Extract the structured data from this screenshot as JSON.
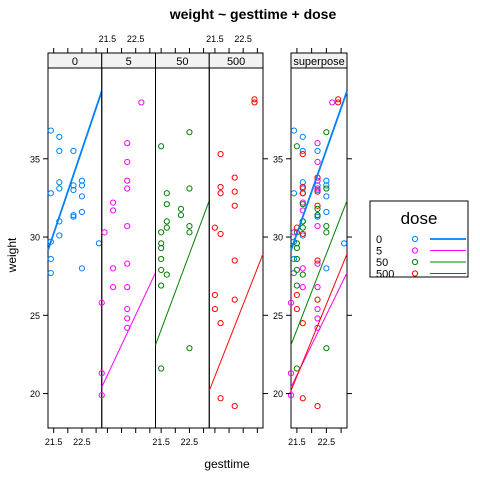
{
  "chart_data": {
    "type": "scatter",
    "title": "weight ~ gesttime + dose",
    "xlabel": "gesttime",
    "ylabel": "weight",
    "xlim": [
      21.3,
      23.2
    ],
    "ylim": [
      17.8,
      40.8
    ],
    "x_ticks": [
      "21.5",
      "22.5"
    ],
    "y_ticks": [
      "20",
      "25",
      "30",
      "35"
    ],
    "panels": [
      "0",
      "5",
      "50",
      "500"
    ],
    "superpose_label": "superpose",
    "legend": {
      "title": "dose",
      "placement": "right"
    },
    "series": [
      {
        "name": "0",
        "color": "#0080ff",
        "line_width": "thick",
        "fit": {
          "intercept": -84.8,
          "slope": 5.35
        },
        "points": [
          [
            21.4,
            36.8
          ],
          [
            21.4,
            32.8
          ],
          [
            21.4,
            29.7
          ],
          [
            21.4,
            28.6
          ],
          [
            21.4,
            27.7
          ],
          [
            21.7,
            36.4
          ],
          [
            21.7,
            35.5
          ],
          [
            21.7,
            33.5
          ],
          [
            21.7,
            33.1
          ],
          [
            21.7,
            31.0
          ],
          [
            21.7,
            30.1
          ],
          [
            22.2,
            35.5
          ],
          [
            22.2,
            33.3
          ],
          [
            22.2,
            33.0
          ],
          [
            22.2,
            31.4
          ],
          [
            22.2,
            31.3
          ],
          [
            22.5,
            33.6
          ],
          [
            22.5,
            33.3
          ],
          [
            22.5,
            32.6
          ],
          [
            22.5,
            31.6
          ],
          [
            22.5,
            28.0
          ],
          [
            23.1,
            29.6
          ]
        ]
      },
      {
        "name": "5",
        "color": "#ff00ff",
        "line_width": "thin",
        "fit": {
          "intercept": -61.6,
          "slope": 3.85
        },
        "points": [
          [
            21.3,
            25.8
          ],
          [
            21.3,
            21.3
          ],
          [
            21.3,
            19.9
          ],
          [
            21.4,
            30.3
          ],
          [
            21.7,
            32.2
          ],
          [
            21.7,
            31.7
          ],
          [
            21.7,
            28.0
          ],
          [
            21.7,
            26.8
          ],
          [
            22.2,
            36.0
          ],
          [
            22.2,
            34.8
          ],
          [
            22.2,
            33.6
          ],
          [
            22.2,
            33.1
          ],
          [
            22.2,
            30.7
          ],
          [
            22.2,
            28.3
          ],
          [
            22.2,
            26.8
          ],
          [
            22.2,
            25.4
          ],
          [
            22.2,
            24.8
          ],
          [
            22.2,
            24.2
          ],
          [
            22.7,
            38.6
          ]
        ]
      },
      {
        "name": "50",
        "color": "#008000",
        "line_width": "thin",
        "fit": {
          "intercept": -80.2,
          "slope": 4.85
        },
        "points": [
          [
            21.5,
            35.8
          ],
          [
            21.5,
            30.3
          ],
          [
            21.5,
            29.6
          ],
          [
            21.5,
            29.3
          ],
          [
            21.5,
            28.6
          ],
          [
            21.5,
            27.9
          ],
          [
            21.5,
            26.9
          ],
          [
            21.5,
            21.6
          ],
          [
            21.7,
            32.8
          ],
          [
            21.7,
            32.1
          ],
          [
            21.7,
            31.0
          ],
          [
            21.7,
            30.6
          ],
          [
            21.7,
            27.6
          ],
          [
            22.5,
            36.7
          ],
          [
            22.5,
            33.1
          ],
          [
            22.5,
            30.7
          ],
          [
            22.5,
            30.3
          ],
          [
            22.5,
            22.9
          ],
          [
            22.2,
            31.8
          ],
          [
            22.2,
            31.4
          ]
        ]
      },
      {
        "name": "500",
        "color": "#ff0000",
        "line_width": "thin",
        "fit": {
          "intercept": -77.8,
          "slope": 4.6
        },
        "points": [
          [
            21.5,
            30.6
          ],
          [
            21.5,
            26.3
          ],
          [
            21.5,
            25.4
          ],
          [
            21.7,
            35.3
          ],
          [
            21.7,
            33.2
          ],
          [
            21.7,
            32.8
          ],
          [
            21.7,
            30.2
          ],
          [
            21.7,
            24.5
          ],
          [
            21.7,
            19.7
          ],
          [
            22.2,
            33.8
          ],
          [
            22.2,
            32.9
          ],
          [
            22.2,
            32.0
          ],
          [
            22.2,
            28.5
          ],
          [
            22.2,
            26.0
          ],
          [
            22.2,
            19.2
          ],
          [
            22.9,
            38.8
          ],
          [
            22.9,
            38.6
          ]
        ]
      }
    ]
  }
}
